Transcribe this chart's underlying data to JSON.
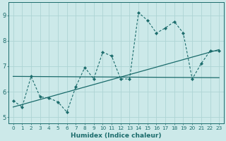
{
  "xlabel": "Humidex (Indice chaleur)",
  "xlim": [
    -0.5,
    23.5
  ],
  "ylim": [
    4.75,
    9.5
  ],
  "xticks": [
    0,
    1,
    2,
    3,
    4,
    5,
    6,
    7,
    8,
    9,
    10,
    11,
    12,
    13,
    14,
    15,
    16,
    17,
    18,
    19,
    20,
    21,
    22,
    23
  ],
  "yticks": [
    5,
    6,
    7,
    8,
    9
  ],
  "bg_color": "#cce9e9",
  "line_color": "#1a6b6b",
  "grid_color": "#aed4d4",
  "jagged_x": [
    0,
    1,
    2,
    3,
    4,
    5,
    6,
    7,
    8,
    9,
    10,
    11,
    12,
    13,
    14,
    15,
    16,
    17,
    18,
    19,
    20,
    21,
    22,
    23
  ],
  "jagged_y": [
    5.65,
    5.4,
    6.6,
    5.8,
    5.75,
    5.6,
    5.2,
    6.2,
    6.95,
    6.5,
    7.55,
    7.4,
    6.5,
    6.5,
    9.1,
    8.8,
    8.3,
    8.5,
    8.75,
    8.3,
    6.5,
    7.1,
    7.6,
    7.6
  ],
  "trend1_x": [
    0,
    23
  ],
  "trend1_y": [
    6.6,
    6.55
  ],
  "trend2_x": [
    0,
    23
  ],
  "trend2_y": [
    5.4,
    7.65
  ]
}
